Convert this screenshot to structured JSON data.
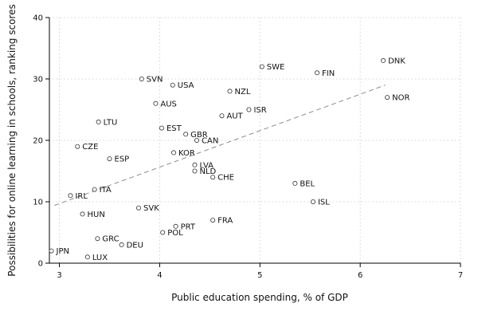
{
  "chart_data": {
    "type": "scatter",
    "title": "",
    "xlabel": "Public education spending, % of GDP",
    "ylabel": "Possibilities for online learning in schools, ranking scores",
    "xlim": [
      2.9,
      7
    ],
    "ylim": [
      0,
      40
    ],
    "xticks": [
      3,
      4,
      5,
      6,
      7
    ],
    "yticks": [
      0,
      10,
      20,
      30,
      40
    ],
    "grid": true,
    "legend": "none",
    "trendline": {
      "x": [
        2.95,
        6.25
      ],
      "y": [
        9.4,
        29.0
      ],
      "style": "dashed"
    },
    "points": [
      {
        "label": "JPN",
        "x": 2.92,
        "y": 2.0
      },
      {
        "label": "IRL",
        "x": 3.11,
        "y": 11.0
      },
      {
        "label": "CZE",
        "x": 3.18,
        "y": 19.0
      },
      {
        "label": "HUN",
        "x": 3.23,
        "y": 8.0
      },
      {
        "label": "LUX",
        "x": 3.28,
        "y": 1.0
      },
      {
        "label": "ITA",
        "x": 3.35,
        "y": 12.0
      },
      {
        "label": "GRC",
        "x": 3.38,
        "y": 4.0
      },
      {
        "label": "LTU",
        "x": 3.39,
        "y": 23.0
      },
      {
        "label": "ESP",
        "x": 3.5,
        "y": 17.0
      },
      {
        "label": "DEU",
        "x": 3.62,
        "y": 3.0
      },
      {
        "label": "SVK",
        "x": 3.79,
        "y": 9.0
      },
      {
        "label": "SVN",
        "x": 3.82,
        "y": 30.0
      },
      {
        "label": "AUS",
        "x": 3.96,
        "y": 26.0
      },
      {
        "label": "POL",
        "x": 4.03,
        "y": 5.0
      },
      {
        "label": "EST",
        "x": 4.02,
        "y": 22.0
      },
      {
        "label": "KOR",
        "x": 4.14,
        "y": 18.0
      },
      {
        "label": "USA",
        "x": 4.13,
        "y": 29.0
      },
      {
        "label": "PRT",
        "x": 4.16,
        "y": 6.0
      },
      {
        "label": "GBR",
        "x": 4.26,
        "y": 21.0
      },
      {
        "label": "CAN",
        "x": 4.37,
        "y": 20.0
      },
      {
        "label": "NLD",
        "x": 4.35,
        "y": 15.0
      },
      {
        "label": "LVA",
        "x": 4.35,
        "y": 16.0
      },
      {
        "label": "FRA",
        "x": 4.53,
        "y": 7.0
      },
      {
        "label": "CHE",
        "x": 4.53,
        "y": 14.0
      },
      {
        "label": "AUT",
        "x": 4.62,
        "y": 24.0
      },
      {
        "label": "NZL",
        "x": 4.7,
        "y": 28.0
      },
      {
        "label": "ISR",
        "x": 4.89,
        "y": 25.0
      },
      {
        "label": "SWE",
        "x": 5.02,
        "y": 32.0
      },
      {
        "label": "BEL",
        "x": 5.35,
        "y": 13.0
      },
      {
        "label": "ISL",
        "x": 5.53,
        "y": 10.0
      },
      {
        "label": "FIN",
        "x": 5.57,
        "y": 31.0
      },
      {
        "label": "DNK",
        "x": 6.23,
        "y": 33.0
      },
      {
        "label": "NOR",
        "x": 6.27,
        "y": 27.0
      }
    ]
  }
}
